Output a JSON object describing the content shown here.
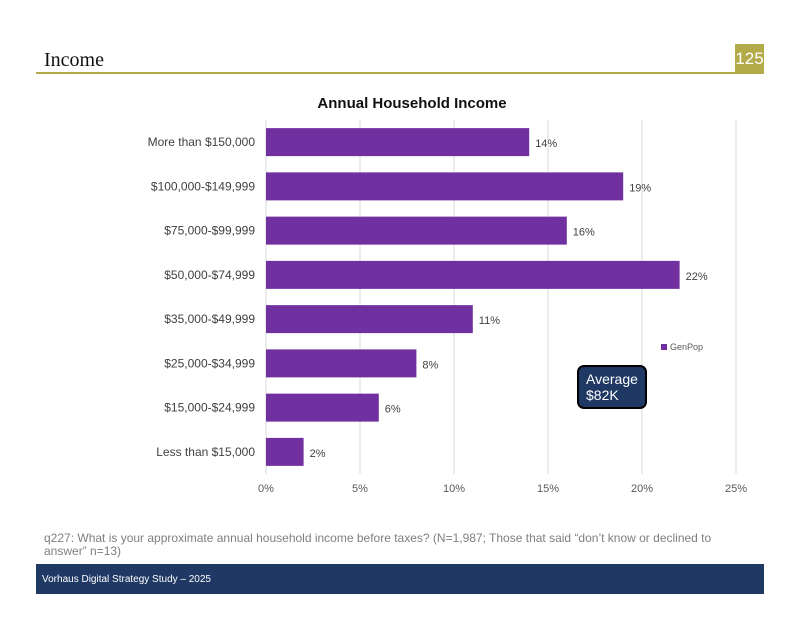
{
  "header": {
    "title": "Income",
    "page_number": "125"
  },
  "chart_data": {
    "type": "bar",
    "orientation": "horizontal",
    "title": "Annual Household Income",
    "categories": [
      "More than $150,000",
      "$100,000-$149,999",
      "$75,000-$99,999",
      "$50,000-$74,999",
      "$35,000-$49,999",
      "$25,000-$34,999",
      "$15,000-$24,999",
      "Less than $15,000"
    ],
    "series": [
      {
        "name": "GenPop",
        "values": [
          14,
          19,
          16,
          22,
          11,
          8,
          6,
          2
        ],
        "labels": [
          "14%",
          "19%",
          "16%",
          "22%",
          "11%",
          "8%",
          "6%",
          "2%"
        ],
        "color": "#7030a0"
      }
    ],
    "xlim": [
      0,
      25
    ],
    "xticks": [
      0,
      5,
      10,
      15,
      20,
      25
    ],
    "xtick_labels": [
      "0%",
      "5%",
      "10%",
      "15%",
      "20%",
      "25%"
    ],
    "grid": true,
    "legend_position": "right"
  },
  "callout": {
    "line1": "Average",
    "line2": "$82K",
    "color": "#1f3864"
  },
  "footnote": "q227: What is your approximate annual household income before taxes? (N=1,987; Those that said “don’t know or declined to answer” n=13)",
  "footer": {
    "text": "Vorhaus Digital Strategy Study – 2025"
  }
}
